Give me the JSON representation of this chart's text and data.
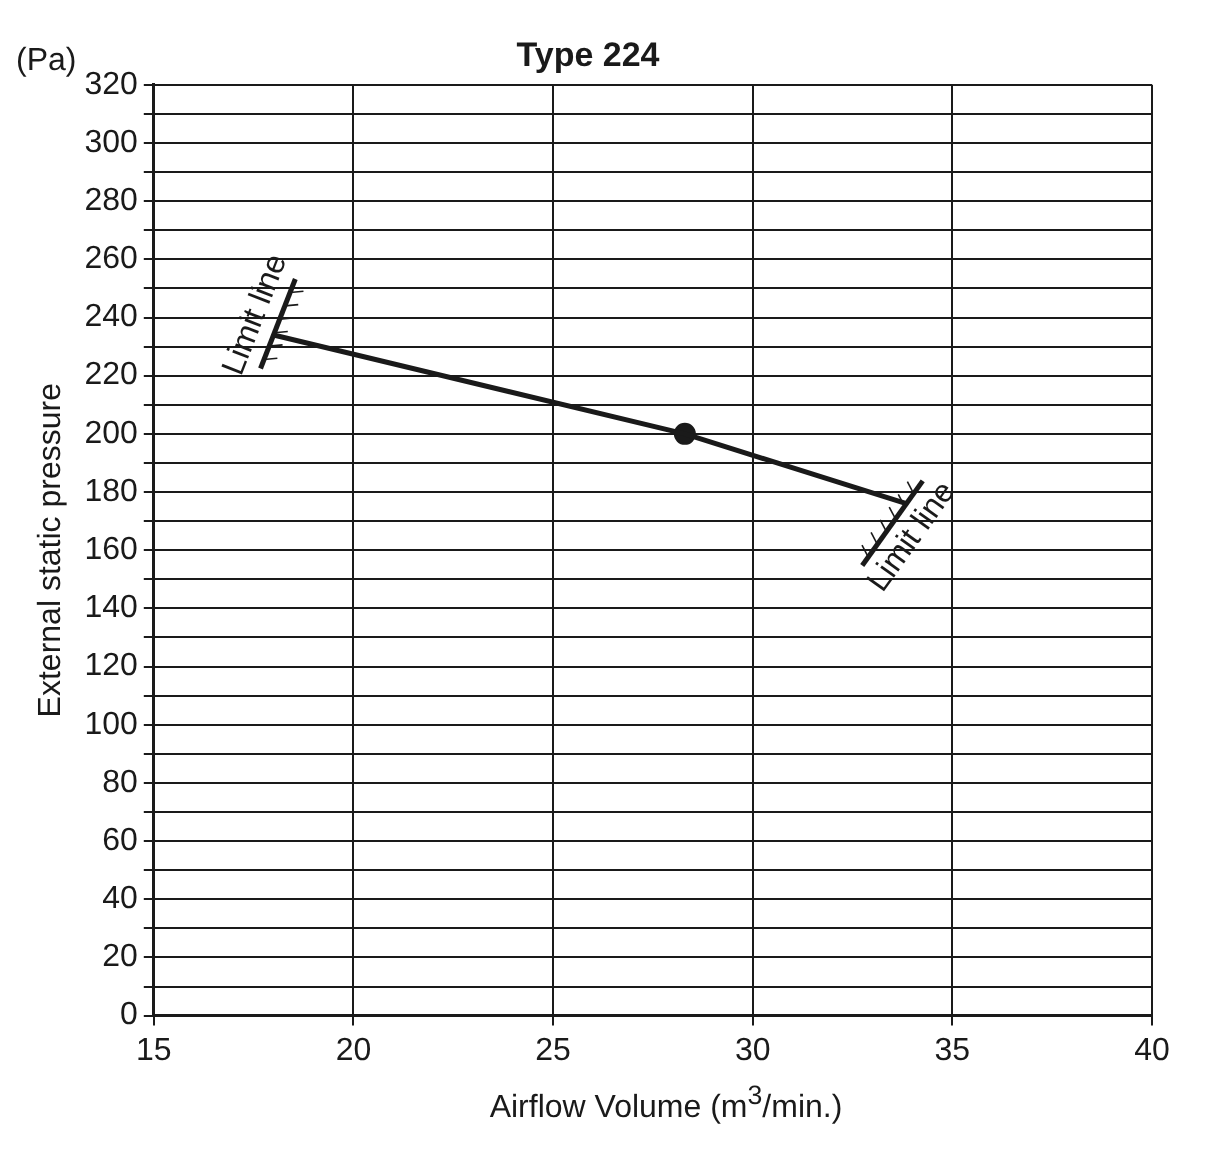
{
  "chart_data": {
    "type": "line",
    "title": "Type 224",
    "xlabel": "Airflow Volume (m$^{3}$/min.)",
    "ylabel": "External static pressure",
    "series": [
      {
        "color": "#1a1a1a",
        "x": [
          18.0,
          28.3,
          33.85
        ],
        "values": [
          234,
          200,
          176
        ],
        "marker": "none",
        "line_style": "solid"
      },
      {
        "type": "scatter",
        "color": "#1a1a1a",
        "x": [
          28.3
        ],
        "values": [
          200
        ],
        "marker": "circle"
      }
    ],
    "xlim": [
      15,
      40
    ],
    "xticks": [
      15,
      20,
      25,
      30,
      35,
      40
    ],
    "ylim": [
      0,
      320
    ],
    "yticks": [
      0,
      {
        "value": 10,
        "label": null
      },
      20,
      {
        "value": 30,
        "label": null
      },
      40,
      {
        "value": 50,
        "label": null
      },
      60,
      {
        "value": 70,
        "label": null
      },
      80,
      {
        "value": 90,
        "label": null
      },
      100,
      {
        "value": 110,
        "label": null
      },
      120,
      {
        "value": 130,
        "label": null
      },
      140,
      {
        "value": 150,
        "label": null
      },
      160,
      {
        "value": 170,
        "label": null
      },
      180,
      {
        "value": 190,
        "label": null
      },
      200,
      {
        "value": 210,
        "label": null
      },
      220,
      {
        "value": 230,
        "label": null
      },
      240,
      {
        "value": 250,
        "label": null
      },
      260,
      {
        "value": 270,
        "label": null
      },
      280,
      {
        "value": 290,
        "label": null
      },
      300,
      {
        "value": 310,
        "label": null
      },
      320
    ],
    "grid": true,
    "legend": false,
    "annotations": [
      "(Pa)",
      {
        "text": "Limit line",
        "x": 18.0,
        "y": 234
      },
      {
        "text": "Limit line",
        "x": 33.85,
        "y": 176
      }
    ]
  }
}
